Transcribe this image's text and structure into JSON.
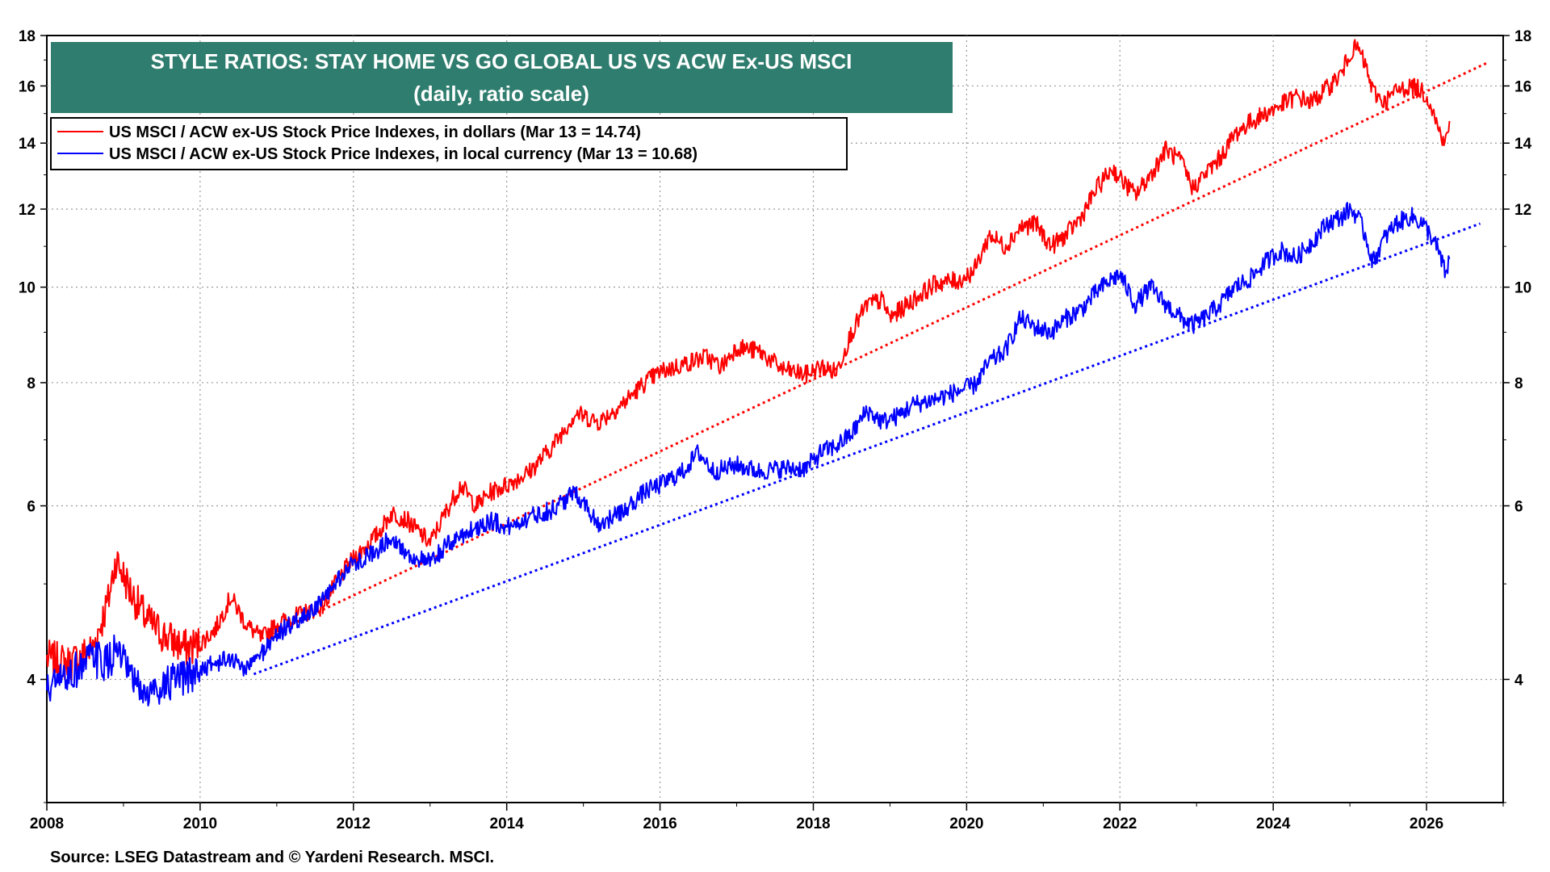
{
  "chart_data": {
    "type": "line",
    "title": "STYLE RATIOS: STAY HOME VS GO GLOBAL US VS ACW Ex-US MSCI",
    "subtitle": "(daily, ratio scale)",
    "source": "Source: LSEG Datastream and © Yardeni Research. MSCI.",
    "x_axis": {
      "min": 2008,
      "max": 2027.0,
      "ticks": [
        "2008",
        "2010",
        "2012",
        "2014",
        "2016",
        "2018",
        "2020",
        "2022",
        "2024",
        "2026"
      ]
    },
    "y_axis": {
      "scale": "log",
      "min": 3.0,
      "max": 18,
      "ticks": [
        "4",
        "6",
        "8",
        "10",
        "12",
        "14",
        "16",
        "18"
      ]
    },
    "series": [
      {
        "name": "US MSCI / ACW ex-US Stock Price Indexes, in dollars (Mar 13 = 14.74)",
        "color": "#ff0000",
        "points": [
          [
            2008.0,
            4.2
          ],
          [
            2008.3,
            4.15
          ],
          [
            2008.6,
            4.3
          ],
          [
            2008.8,
            4.8
          ],
          [
            2008.9,
            5.3
          ],
          [
            2009.1,
            4.9
          ],
          [
            2009.3,
            4.6
          ],
          [
            2009.5,
            4.45
          ],
          [
            2009.8,
            4.3
          ],
          [
            2010.0,
            4.35
          ],
          [
            2010.2,
            4.5
          ],
          [
            2010.4,
            4.85
          ],
          [
            2010.6,
            4.55
          ],
          [
            2010.8,
            4.4
          ],
          [
            2011.0,
            4.55
          ],
          [
            2011.3,
            4.65
          ],
          [
            2011.6,
            4.75
          ],
          [
            2011.8,
            5.05
          ],
          [
            2012.0,
            5.3
          ],
          [
            2012.3,
            5.6
          ],
          [
            2012.5,
            5.9
          ],
          [
            2012.7,
            5.8
          ],
          [
            2013.0,
            5.5
          ],
          [
            2013.2,
            5.9
          ],
          [
            2013.4,
            6.3
          ],
          [
            2013.6,
            6.0
          ],
          [
            2013.8,
            6.2
          ],
          [
            2014.0,
            6.3
          ],
          [
            2014.3,
            6.5
          ],
          [
            2014.6,
            6.9
          ],
          [
            2014.9,
            7.45
          ],
          [
            2015.2,
            7.3
          ],
          [
            2015.5,
            7.6
          ],
          [
            2015.8,
            8.0
          ],
          [
            2016.0,
            8.2
          ],
          [
            2016.3,
            8.35
          ],
          [
            2016.6,
            8.5
          ],
          [
            2016.8,
            8.3
          ],
          [
            2017.0,
            8.7
          ],
          [
            2017.3,
            8.6
          ],
          [
            2017.6,
            8.25
          ],
          [
            2017.9,
            8.15
          ],
          [
            2018.1,
            8.3
          ],
          [
            2018.3,
            8.2
          ],
          [
            2018.5,
            9.0
          ],
          [
            2018.7,
            9.6
          ],
          [
            2018.9,
            9.7
          ],
          [
            2019.0,
            9.3
          ],
          [
            2019.3,
            9.7
          ],
          [
            2019.6,
            10.1
          ],
          [
            2019.9,
            10.15
          ],
          [
            2020.1,
            10.4
          ],
          [
            2020.3,
            11.3
          ],
          [
            2020.5,
            11.0
          ],
          [
            2020.7,
            11.5
          ],
          [
            2020.9,
            11.6
          ],
          [
            2021.1,
            11.0
          ],
          [
            2021.3,
            11.3
          ],
          [
            2021.5,
            11.8
          ],
          [
            2021.7,
            12.6
          ],
          [
            2021.9,
            13.2
          ],
          [
            2022.0,
            12.9
          ],
          [
            2022.2,
            12.4
          ],
          [
            2022.4,
            13.0
          ],
          [
            2022.6,
            13.8
          ],
          [
            2022.8,
            13.4
          ],
          [
            2022.95,
            12.6
          ],
          [
            2023.1,
            13.0
          ],
          [
            2023.3,
            13.5
          ],
          [
            2023.5,
            14.3
          ],
          [
            2023.7,
            14.7
          ],
          [
            2023.9,
            15.0
          ],
          [
            2024.1,
            15.3
          ],
          [
            2024.3,
            15.6
          ],
          [
            2024.5,
            15.4
          ],
          [
            2024.7,
            15.9
          ],
          [
            2024.9,
            16.5
          ],
          [
            2025.0,
            17.3
          ],
          [
            2025.1,
            17.5
          ],
          [
            2025.2,
            16.8
          ],
          [
            2025.3,
            15.8
          ],
          [
            2025.45,
            15.4
          ],
          [
            2025.6,
            15.8
          ],
          [
            2025.8,
            16.0
          ],
          [
            2025.95,
            15.8
          ],
          [
            2026.05,
            15.4
          ],
          [
            2026.15,
            14.5
          ],
          [
            2026.25,
            14.0
          ],
          [
            2026.3,
            14.74
          ]
        ]
      },
      {
        "name": "US MSCI / ACW ex-US Stock Price Indexes, in local currency (Mar 13 = 10.68)",
        "color": "#0000ff",
        "points": [
          [
            2008.0,
            3.9
          ],
          [
            2008.3,
            4.05
          ],
          [
            2008.6,
            4.2
          ],
          [
            2008.8,
            4.15
          ],
          [
            2008.9,
            4.3
          ],
          [
            2009.1,
            4.0
          ],
          [
            2009.3,
            3.85
          ],
          [
            2009.5,
            3.95
          ],
          [
            2009.8,
            4.0
          ],
          [
            2010.0,
            4.1
          ],
          [
            2010.2,
            4.15
          ],
          [
            2010.4,
            4.2
          ],
          [
            2010.6,
            4.1
          ],
          [
            2010.8,
            4.25
          ],
          [
            2011.0,
            4.45
          ],
          [
            2011.3,
            4.6
          ],
          [
            2011.6,
            4.8
          ],
          [
            2011.8,
            5.05
          ],
          [
            2012.0,
            5.25
          ],
          [
            2012.3,
            5.4
          ],
          [
            2012.5,
            5.6
          ],
          [
            2012.7,
            5.35
          ],
          [
            2013.0,
            5.25
          ],
          [
            2013.2,
            5.45
          ],
          [
            2013.4,
            5.6
          ],
          [
            2013.6,
            5.7
          ],
          [
            2013.8,
            5.8
          ],
          [
            2014.0,
            5.7
          ],
          [
            2014.3,
            5.85
          ],
          [
            2014.6,
            5.95
          ],
          [
            2014.9,
            6.2
          ],
          [
            2015.2,
            5.75
          ],
          [
            2015.5,
            5.9
          ],
          [
            2015.8,
            6.2
          ],
          [
            2016.0,
            6.3
          ],
          [
            2016.3,
            6.5
          ],
          [
            2016.5,
            6.8
          ],
          [
            2016.7,
            6.5
          ],
          [
            2017.0,
            6.6
          ],
          [
            2017.3,
            6.5
          ],
          [
            2017.6,
            6.55
          ],
          [
            2017.9,
            6.55
          ],
          [
            2018.1,
            6.8
          ],
          [
            2018.3,
            6.9
          ],
          [
            2018.5,
            7.1
          ],
          [
            2018.7,
            7.5
          ],
          [
            2018.9,
            7.3
          ],
          [
            2019.1,
            7.4
          ],
          [
            2019.3,
            7.6
          ],
          [
            2019.6,
            7.7
          ],
          [
            2019.9,
            7.85
          ],
          [
            2020.1,
            7.95
          ],
          [
            2020.3,
            8.4
          ],
          [
            2020.5,
            8.6
          ],
          [
            2020.7,
            9.3
          ],
          [
            2020.9,
            9.1
          ],
          [
            2021.1,
            9.0
          ],
          [
            2021.3,
            9.3
          ],
          [
            2021.5,
            9.5
          ],
          [
            2021.7,
            9.9
          ],
          [
            2021.9,
            10.2
          ],
          [
            2022.0,
            10.3
          ],
          [
            2022.2,
            9.6
          ],
          [
            2022.4,
            10.0
          ],
          [
            2022.6,
            9.6
          ],
          [
            2022.8,
            9.3
          ],
          [
            2022.95,
            9.15
          ],
          [
            2023.1,
            9.3
          ],
          [
            2023.3,
            9.6
          ],
          [
            2023.5,
            10.0
          ],
          [
            2023.7,
            10.2
          ],
          [
            2023.9,
            10.6
          ],
          [
            2024.1,
            10.9
          ],
          [
            2024.3,
            10.7
          ],
          [
            2024.5,
            11.1
          ],
          [
            2024.7,
            11.6
          ],
          [
            2024.9,
            11.8
          ],
          [
            2025.0,
            12.0
          ],
          [
            2025.1,
            11.8
          ],
          [
            2025.2,
            11.3
          ],
          [
            2025.3,
            10.6
          ],
          [
            2025.45,
            11.2
          ],
          [
            2025.6,
            11.6
          ],
          [
            2025.8,
            11.8
          ],
          [
            2025.95,
            11.6
          ],
          [
            2026.05,
            11.3
          ],
          [
            2026.15,
            10.9
          ],
          [
            2026.25,
            10.3
          ],
          [
            2026.3,
            10.68
          ]
        ]
      }
    ],
    "trendlines": [
      {
        "color": "#ff0000",
        "style": "dotted",
        "from": [
          2010.8,
          4.4
        ],
        "to": [
          2026.8,
          16.9
        ]
      },
      {
        "color": "#0000ff",
        "style": "dotted",
        "from": [
          2010.7,
          4.05
        ],
        "to": [
          2026.7,
          11.6
        ]
      }
    ],
    "legend": [
      "US MSCI / ACW ex-US Stock Price Indexes, in dollars (Mar 13 = 14.74)",
      "US MSCI / ACW ex-US Stock Price Indexes, in local currency (Mar 13 = 10.68)"
    ],
    "title_box_color": "#2e7d6e"
  }
}
